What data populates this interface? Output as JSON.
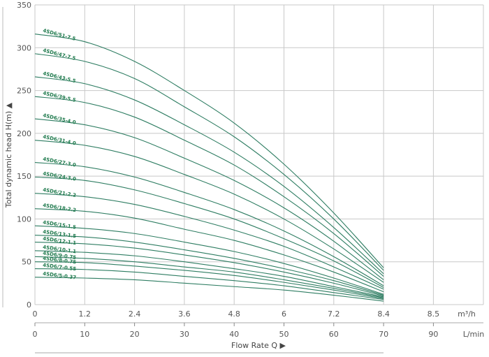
{
  "chart_data": {
    "type": "line",
    "xlabel": "Flow Rate Q ▶",
    "ylabel": "Total dynamic head H(m) ▲",
    "x_unit_primary": "m³/h",
    "x_unit_secondary": "L/min",
    "x_ticks_primary": [
      "0",
      "1.2",
      "2.4",
      "3.6",
      "4.8",
      "6",
      "7.2",
      "8.4",
      "8.5"
    ],
    "x_ticks_secondary": [
      "0",
      "10",
      "20",
      "30",
      "40",
      "50",
      "60",
      "70",
      "90"
    ],
    "y_ticks": [
      "0",
      "50",
      "100",
      "150",
      "200",
      "250",
      "300",
      "350"
    ],
    "ylim": [
      0,
      350
    ],
    "xlim": [
      0,
      8.4
    ],
    "grid": true,
    "line_color": "#2e7d62",
    "label_color": "#1f7a4d",
    "x": [
      0,
      1.2,
      2.4,
      3.6,
      4.8,
      6,
      7.2,
      8.4
    ],
    "series": [
      {
        "name": "4SD6/51-7.5",
        "values": [
          316,
          307,
          284,
          250,
          212,
          164,
          107,
          43
        ]
      },
      {
        "name": "4SD6/47-7.5",
        "values": [
          293,
          284,
          264,
          231,
          196,
          152,
          100,
          40
        ]
      },
      {
        "name": "4SD6/43-5.5",
        "values": [
          266,
          258,
          239,
          210,
          178,
          138,
          90,
          36
        ]
      },
      {
        "name": "4SD6/39-5.5",
        "values": [
          243,
          236,
          219,
          192,
          163,
          126,
          83,
          33
        ]
      },
      {
        "name": "4SD6/35-4.0",
        "values": [
          217,
          210,
          195,
          171,
          145,
          113,
          74,
          29
        ]
      },
      {
        "name": "4SD6/31-4.0",
        "values": [
          192,
          186,
          173,
          152,
          129,
          100,
          65,
          26
        ]
      },
      {
        "name": "4SD6/27-3.0",
        "values": [
          166,
          161,
          149,
          131,
          111,
          86,
          56,
          22
        ]
      },
      {
        "name": "4SD6/24-3.0",
        "values": [
          149,
          145,
          134,
          118,
          100,
          77,
          51,
          20
        ]
      },
      {
        "name": "4SD6/21-2.2",
        "values": [
          130,
          126,
          117,
          103,
          87,
          68,
          44,
          18
        ]
      },
      {
        "name": "4SD6/18-2.2",
        "values": [
          112,
          109,
          101,
          88,
          75,
          58,
          38,
          15
        ]
      },
      {
        "name": "4SD6/15-1.5",
        "values": [
          92,
          89,
          83,
          73,
          62,
          48,
          31,
          12
        ]
      },
      {
        "name": "4SD6/13-1.5",
        "values": [
          81,
          79,
          73,
          64,
          54,
          42,
          28,
          11
        ]
      },
      {
        "name": "4SD6/12-1.1",
        "values": [
          73,
          71,
          66,
          58,
          49,
          38,
          25,
          10
        ]
      },
      {
        "name": "4SD6/10-1.1",
        "values": [
          63,
          61,
          57,
          50,
          42,
          33,
          21,
          9
        ]
      },
      {
        "name": "4SD6/9-0.75",
        "values": [
          56,
          54,
          50,
          44,
          38,
          29,
          19,
          8
        ]
      },
      {
        "name": "4SD6/8-0.75",
        "values": [
          50,
          49,
          45,
          40,
          34,
          26,
          17,
          7
        ]
      },
      {
        "name": "4SD6/7-0.55",
        "values": [
          42,
          41,
          38,
          33,
          28,
          22,
          14,
          6
        ]
      },
      {
        "name": "4SD6/5-0.37",
        "values": [
          32,
          31,
          29,
          25,
          21,
          17,
          11,
          4
        ]
      }
    ]
  }
}
